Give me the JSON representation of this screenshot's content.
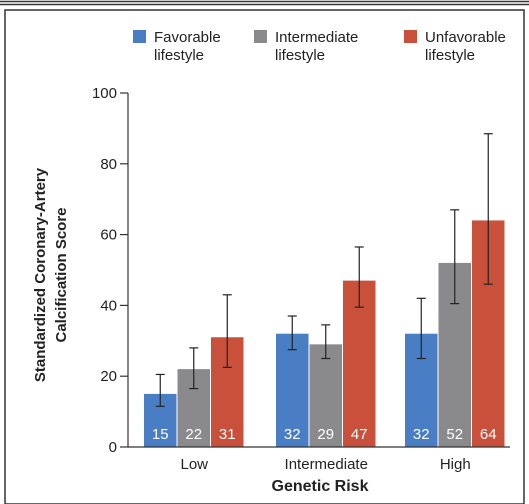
{
  "chart_data": {
    "type": "bar",
    "categories": [
      "Low",
      "Intermediate",
      "High"
    ],
    "series": [
      {
        "name": "Favorable lifestyle",
        "name_lines": [
          "Favorable",
          "lifestyle"
        ],
        "color": "#4a7ec4",
        "values": [
          15,
          32,
          32
        ],
        "labels": [
          "15",
          "32",
          "32"
        ],
        "ci": [
          [
            11.5,
            20.5
          ],
          [
            27.5,
            37
          ],
          [
            25,
            42
          ]
        ]
      },
      {
        "name": "Intermediate lifestyle",
        "name_lines": [
          "Intermediate",
          "lifestyle"
        ],
        "color": "#8a8a8c",
        "values": [
          22,
          29,
          52
        ],
        "labels": [
          "22",
          "29",
          "52"
        ],
        "ci": [
          [
            16.5,
            28
          ],
          [
            25,
            34.5
          ],
          [
            40.5,
            67
          ]
        ]
      },
      {
        "name": "Unfavorable lifestyle",
        "name_lines": [
          "Unfavorable",
          "lifestyle"
        ],
        "color": "#c9503a",
        "values": [
          31,
          47,
          64
        ],
        "labels": [
          "31",
          "47",
          "64"
        ],
        "ci": [
          [
            22.5,
            43
          ],
          [
            39.5,
            56.5
          ],
          [
            46,
            88.5
          ]
        ]
      }
    ],
    "xlabel": "Genetic Risk",
    "ylabel_lines": [
      "Standardized Coronary-Artery",
      "Calcification Score"
    ],
    "ylim": [
      0,
      100
    ],
    "yticks": [
      "0",
      "20",
      "40",
      "60",
      "80",
      "100"
    ],
    "legend_position": "top",
    "grid": false
  }
}
